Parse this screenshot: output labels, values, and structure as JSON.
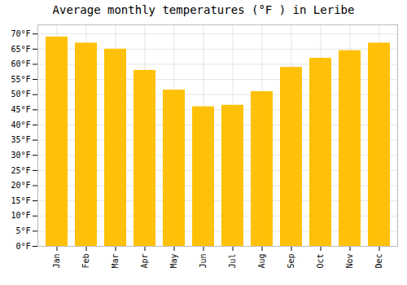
{
  "chart_data": {
    "type": "bar",
    "title": "Average monthly temperatures (°F ) in Leribe",
    "categories": [
      "Jan",
      "Feb",
      "Mar",
      "Apr",
      "May",
      "Jun",
      "Jul",
      "Aug",
      "Sep",
      "Oct",
      "Nov",
      "Dec"
    ],
    "values": [
      69,
      67,
      65,
      58,
      51.5,
      46,
      46.5,
      51,
      59,
      62,
      64.5,
      67
    ],
    "color": "#FFC107",
    "ylim": [
      0,
      73
    ],
    "yticks": [
      {
        "value": 0,
        "label": "0°F"
      },
      {
        "value": 5,
        "label": "5°F"
      },
      {
        "value": 10,
        "label": "10°F"
      },
      {
        "value": 15,
        "label": "15°F"
      },
      {
        "value": 20,
        "label": "20°F"
      },
      {
        "value": 25,
        "label": "25°F"
      },
      {
        "value": 30,
        "label": "30°F"
      },
      {
        "value": 35,
        "label": "35°F"
      },
      {
        "value": 40,
        "label": "40°F"
      },
      {
        "value": 45,
        "label": "45°F"
      },
      {
        "value": 50,
        "label": "50°F"
      },
      {
        "value": 55,
        "label": "55°F"
      },
      {
        "value": 60,
        "label": "60°F"
      },
      {
        "value": 65,
        "label": "65°F"
      },
      {
        "value": 70,
        "label": "70°F"
      }
    ],
    "grid": true
  }
}
